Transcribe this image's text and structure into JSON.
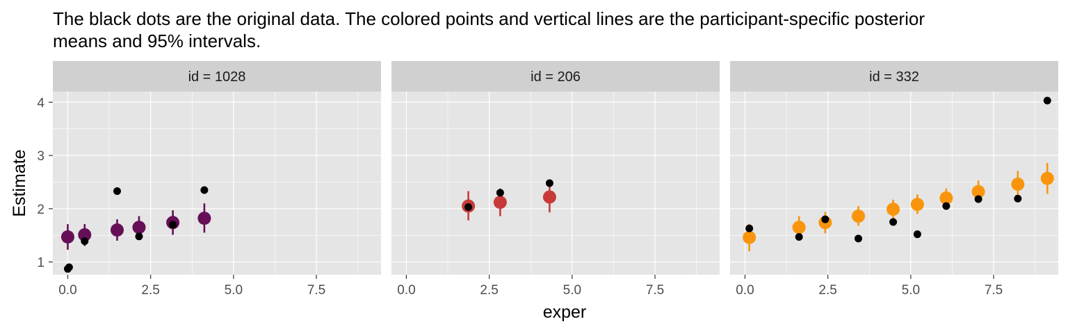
{
  "chart_data": {
    "type": "scatter",
    "title_lines": [
      "The black dots are the original data. The colored points and vertical lines are the participant-specific posterior",
      "means and 95% intervals."
    ],
    "xlabel": "exper",
    "ylabel": "Estimate",
    "xlim": [
      -0.45,
      9.45
    ],
    "ylim": [
      0.76,
      4.2
    ],
    "x_ticks": [
      0,
      2.5,
      5,
      7.5
    ],
    "x_tick_labels": [
      "0.0",
      "2.5",
      "5.0",
      "7.5"
    ],
    "y_ticks": [
      1,
      2,
      3,
      4
    ],
    "y_tick_labels": [
      "1",
      "2",
      "3",
      "4"
    ],
    "grid": true,
    "legend": "none",
    "colors": {
      "panel_bg": "#e5e5e5",
      "strip_bg": "#d0d0d0",
      "gridline": "#ffffff",
      "observed": "#000000"
    },
    "panels": [
      {
        "strip_label": "id = 1028",
        "color": "#660f57",
        "observed": [
          {
            "x": 0.0,
            "y": 0.87
          },
          {
            "x": 0.04,
            "y": 0.9
          },
          {
            "x": 0.51,
            "y": 1.39
          },
          {
            "x": 1.49,
            "y": 2.33
          },
          {
            "x": 2.15,
            "y": 1.48
          },
          {
            "x": 3.17,
            "y": 1.7
          },
          {
            "x": 4.12,
            "y": 2.35
          }
        ],
        "posterior": [
          {
            "x": 0.0,
            "mean": 1.47,
            "lower": 1.23,
            "upper": 1.71
          },
          {
            "x": 0.51,
            "mean": 1.51,
            "lower": 1.3,
            "upper": 1.71
          },
          {
            "x": 1.49,
            "mean": 1.6,
            "lower": 1.4,
            "upper": 1.8
          },
          {
            "x": 2.15,
            "mean": 1.65,
            "lower": 1.45,
            "upper": 1.86
          },
          {
            "x": 3.17,
            "mean": 1.74,
            "lower": 1.51,
            "upper": 1.97
          },
          {
            "x": 4.12,
            "mean": 1.82,
            "lower": 1.55,
            "upper": 2.1
          }
        ]
      },
      {
        "strip_label": "id = 206",
        "color": "#c83a3a",
        "observed": [
          {
            "x": 1.87,
            "y": 2.03
          },
          {
            "x": 2.83,
            "y": 2.3
          },
          {
            "x": 4.32,
            "y": 2.48
          }
        ],
        "posterior": [
          {
            "x": 1.87,
            "mean": 2.05,
            "lower": 1.78,
            "upper": 2.33
          },
          {
            "x": 2.83,
            "mean": 2.12,
            "lower": 1.86,
            "upper": 2.38
          },
          {
            "x": 4.32,
            "mean": 2.22,
            "lower": 1.93,
            "upper": 2.51
          }
        ]
      },
      {
        "strip_label": "id = 332",
        "color": "#f9950c",
        "observed": [
          {
            "x": 0.13,
            "y": 1.63
          },
          {
            "x": 1.63,
            "y": 1.47
          },
          {
            "x": 2.42,
            "y": 1.8
          },
          {
            "x": 3.42,
            "y": 1.44
          },
          {
            "x": 4.47,
            "y": 1.75
          },
          {
            "x": 5.2,
            "y": 1.52
          },
          {
            "x": 6.07,
            "y": 2.05
          },
          {
            "x": 7.04,
            "y": 2.18
          },
          {
            "x": 8.23,
            "y": 2.19
          },
          {
            "x": 9.12,
            "y": 4.03
          }
        ],
        "posterior": [
          {
            "x": 0.13,
            "mean": 1.46,
            "lower": 1.2,
            "upper": 1.71
          },
          {
            "x": 1.63,
            "mean": 1.65,
            "lower": 1.45,
            "upper": 1.86
          },
          {
            "x": 2.42,
            "mean": 1.74,
            "lower": 1.54,
            "upper": 1.94
          },
          {
            "x": 3.42,
            "mean": 1.86,
            "lower": 1.68,
            "upper": 2.05
          },
          {
            "x": 4.47,
            "mean": 1.99,
            "lower": 1.81,
            "upper": 2.17
          },
          {
            "x": 5.2,
            "mean": 2.08,
            "lower": 1.9,
            "upper": 2.27
          },
          {
            "x": 6.07,
            "mean": 2.2,
            "lower": 2.0,
            "upper": 2.38
          },
          {
            "x": 7.04,
            "mean": 2.32,
            "lower": 2.11,
            "upper": 2.53
          },
          {
            "x": 8.23,
            "mean": 2.46,
            "lower": 2.21,
            "upper": 2.71
          },
          {
            "x": 9.12,
            "mean": 2.57,
            "lower": 2.28,
            "upper": 2.86
          }
        ]
      }
    ]
  }
}
